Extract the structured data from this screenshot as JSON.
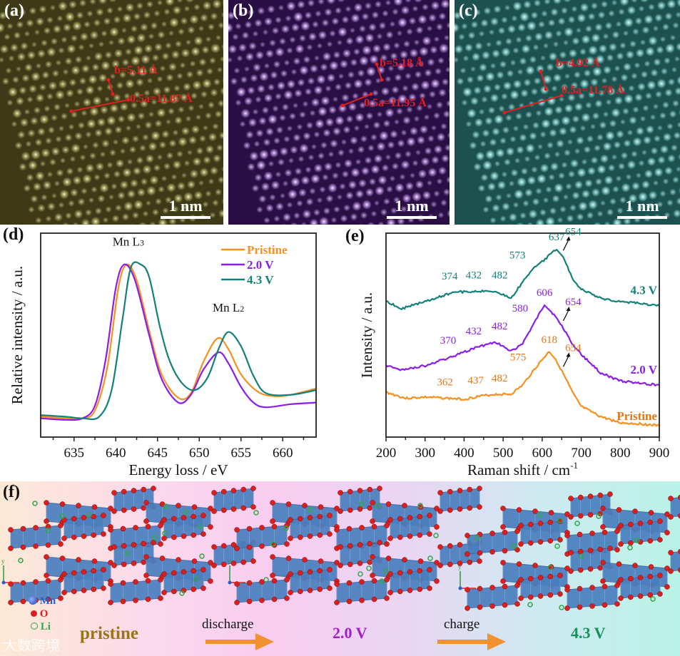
{
  "panels": {
    "a": {
      "label": "(a)",
      "b_text": "b=5.11 Å",
      "a_text": "0.5a=11.87 Å",
      "scale": "1 nm",
      "tint": "#c8c070",
      "bg": "#3e3a18"
    },
    "b": {
      "label": "(b)",
      "b_text": "b=5.18 Å",
      "a_text": "0.5a=11.95 Å",
      "scale": "1 nm",
      "tint": "#d9a8ff",
      "bg": "#2a0f45"
    },
    "c": {
      "label": "(c)",
      "b_text": "b=4.92 Å",
      "a_text": "0.5a=11.78 Å",
      "scale": "1 nm",
      "tint": "#a0f0ea",
      "bg": "#1c5150"
    }
  },
  "chart_data": [
    {
      "panel": "(d)",
      "type": "line",
      "xlabel": "Energy loss / eV",
      "ylabel": "Relative intensity / a.u.",
      "xlim": [
        631,
        664
      ],
      "ylim": [
        -0.1,
        1.2
      ],
      "xticks": [
        635,
        640,
        645,
        650,
        655,
        660
      ],
      "legend_position": "top-right",
      "annotations": [
        {
          "text": "Mn L",
          "sub": "3",
          "x": 641.5,
          "y": 1.12
        },
        {
          "text": "Mn L",
          "sub": "2",
          "x": 653.5,
          "y": 0.7
        }
      ],
      "series": [
        {
          "name": "Pristine",
          "color": "#f7901e",
          "points": [
            [
              631,
              0.03
            ],
            [
              634,
              0.02
            ],
            [
              636,
              0.02
            ],
            [
              637.5,
              0.07
            ],
            [
              639,
              0.35
            ],
            [
              640.3,
              0.85
            ],
            [
              641.3,
              1.0
            ],
            [
              642.5,
              0.9
            ],
            [
              644,
              0.58
            ],
            [
              645.5,
              0.3
            ],
            [
              647.5,
              0.15
            ],
            [
              649,
              0.18
            ],
            [
              650.5,
              0.38
            ],
            [
              652.2,
              0.53
            ],
            [
              653.5,
              0.46
            ],
            [
              655,
              0.3
            ],
            [
              657,
              0.19
            ],
            [
              659,
              0.16
            ],
            [
              661,
              0.17
            ],
            [
              664,
              0.21
            ]
          ]
        },
        {
          "name": "2.0 V",
          "color": "#8a1ee8",
          "points": [
            [
              631,
              0.02
            ],
            [
              634,
              0.01
            ],
            [
              636,
              0.02
            ],
            [
              637.5,
              0.1
            ],
            [
              638.8,
              0.4
            ],
            [
              640,
              0.85
            ],
            [
              641,
              1.0
            ],
            [
              642.3,
              0.9
            ],
            [
              644,
              0.55
            ],
            [
              645.5,
              0.27
            ],
            [
              647.5,
              0.12
            ],
            [
              649,
              0.17
            ],
            [
              650.5,
              0.33
            ],
            [
              652.3,
              0.44
            ],
            [
              653.5,
              0.37
            ],
            [
              655,
              0.22
            ],
            [
              656.5,
              0.12
            ],
            [
              658,
              0.09
            ],
            [
              661,
              0.11
            ],
            [
              664,
              0.12
            ]
          ]
        },
        {
          "name": "4.3 V",
          "color": "#13807a",
          "points": [
            [
              631,
              0.04
            ],
            [
              634,
              0.03
            ],
            [
              636,
              0.02
            ],
            [
              638,
              0.03
            ],
            [
              639.5,
              0.2
            ],
            [
              640.8,
              0.65
            ],
            [
              641.8,
              0.98
            ],
            [
              643,
              1.0
            ],
            [
              644,
              0.92
            ],
            [
              645.3,
              0.6
            ],
            [
              646.5,
              0.38
            ],
            [
              648,
              0.24
            ],
            [
              649.5,
              0.2
            ],
            [
              651,
              0.28
            ],
            [
              652.3,
              0.46
            ],
            [
              653.5,
              0.57
            ],
            [
              655,
              0.48
            ],
            [
              656.5,
              0.29
            ],
            [
              658,
              0.18
            ],
            [
              661,
              0.17
            ],
            [
              664,
              0.2
            ]
          ]
        }
      ]
    },
    {
      "panel": "(e)",
      "type": "line",
      "xlabel": "Raman shift / cm",
      "xlabel_sup": "-1",
      "ylabel": "Intensity / a.u.",
      "xlim": [
        200,
        900
      ],
      "ylim": [
        0,
        100
      ],
      "xticks": [
        200,
        300,
        400,
        500,
        600,
        700,
        800,
        900
      ],
      "series": [
        {
          "name": "Pristine",
          "color": "#f7901e",
          "label_color": "#e0761a",
          "points": [
            [
              200,
              22
            ],
            [
              250,
              19
            ],
            [
              300,
              19.6
            ],
            [
              362,
              19
            ],
            [
              400,
              18.5
            ],
            [
              437,
              20
            ],
            [
              482,
              21
            ],
            [
              520,
              21
            ],
            [
              550,
              25.5
            ],
            [
              575,
              32
            ],
            [
              600,
              38
            ],
            [
              618,
              42
            ],
            [
              635,
              38
            ],
            [
              654,
              31
            ],
            [
              680,
              21
            ],
            [
              700,
              15
            ],
            [
              750,
              10
            ],
            [
              800,
              7
            ],
            [
              850,
              6.5
            ],
            [
              900,
              5.6
            ]
          ],
          "peaks": [
            "362",
            "437",
            "482",
            "575",
            "618",
            "654"
          ]
        },
        {
          "name": "2.0 V",
          "color": "#8a1ee8",
          "label_color": "#8a1ee8",
          "points": [
            [
              200,
              35
            ],
            [
              240,
              33
            ],
            [
              300,
              35
            ],
            [
              370,
              39.5
            ],
            [
              432,
              44
            ],
            [
              482,
              46.5
            ],
            [
              520,
              42
            ],
            [
              550,
              46
            ],
            [
              580,
              56
            ],
            [
              606,
              65
            ],
            [
              630,
              60
            ],
            [
              654,
              53.5
            ],
            [
              680,
              45
            ],
            [
              700,
              40.5
            ],
            [
              750,
              31.5
            ],
            [
              800,
              27.5
            ],
            [
              850,
              26.5
            ],
            [
              900,
              25.5
            ]
          ],
          "peaks": [
            "370",
            "432",
            "482",
            "580",
            "606",
            "654"
          ]
        },
        {
          "name": "4.3 V",
          "color": "#13807a",
          "label_color": "#13807a",
          "points": [
            [
              200,
              66.5
            ],
            [
              240,
              63
            ],
            [
              300,
              66.5
            ],
            [
              374,
              71
            ],
            [
              432,
              71.5
            ],
            [
              482,
              71.5
            ],
            [
              520,
              68
            ],
            [
              550,
              76
            ],
            [
              573,
              82
            ],
            [
              600,
              86
            ],
            [
              637,
              92.3
            ],
            [
              654,
              88
            ],
            [
              680,
              77
            ],
            [
              700,
              72.5
            ],
            [
              750,
              68
            ],
            [
              800,
              66.5
            ],
            [
              850,
              65.5
            ],
            [
              900,
              64.5
            ]
          ],
          "peaks": [
            "374",
            "432",
            "482",
            "573",
            "637",
            "654"
          ]
        }
      ]
    }
  ],
  "panel_d_label": "(d)",
  "panel_e_label": "(e)",
  "panel_f": {
    "label": "(f)",
    "legend": [
      {
        "name": "Mn",
        "color": "#2a5fc9"
      },
      {
        "name": "O",
        "color": "#d82020"
      },
      {
        "name": "Li",
        "color": "#2fa84a"
      }
    ],
    "states": [
      {
        "text": "pristine",
        "color": "#9a7418"
      },
      {
        "text": "2.0 V",
        "color": "#a020c8"
      },
      {
        "text": "4.3 V",
        "color": "#17905a"
      }
    ],
    "transitions": [
      "discharge",
      "charge"
    ],
    "axis_labels": {
      "y": "y",
      "x": "x"
    },
    "watermark": "大数跨境"
  }
}
